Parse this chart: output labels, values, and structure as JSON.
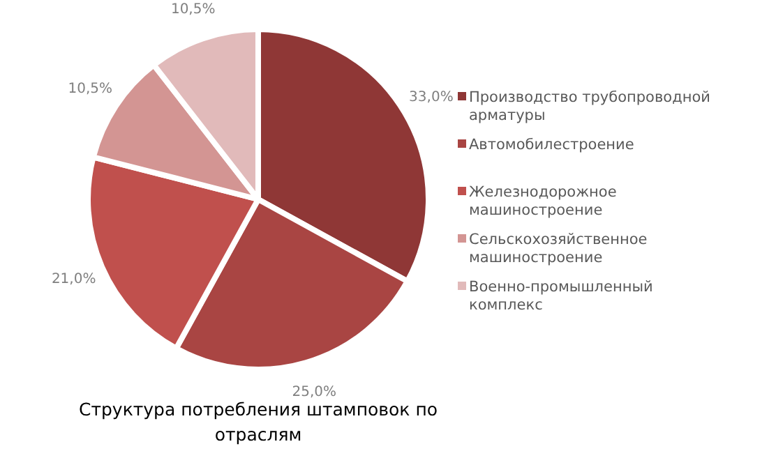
{
  "chart_data": {
    "type": "pie",
    "title": "Структура потребления штамповок по отраслям",
    "categories": [
      "Производство трубопроводной арматуры",
      "Автомобилестроение",
      "Железнодорожное машиностроение",
      "Сельскохозяйственное машиностроение",
      "Военно-промышленный комплекс"
    ],
    "values": [
      33,
      25,
      21,
      10.5,
      10.5
    ],
    "value_labels": [
      "33,0%",
      "25,0%",
      "21,0%",
      "10,5%",
      "10,5%"
    ],
    "colors": [
      "#8f3736",
      "#a94543",
      "#c0504d",
      "#d39593",
      "#e1baba"
    ],
    "legend": "right"
  }
}
